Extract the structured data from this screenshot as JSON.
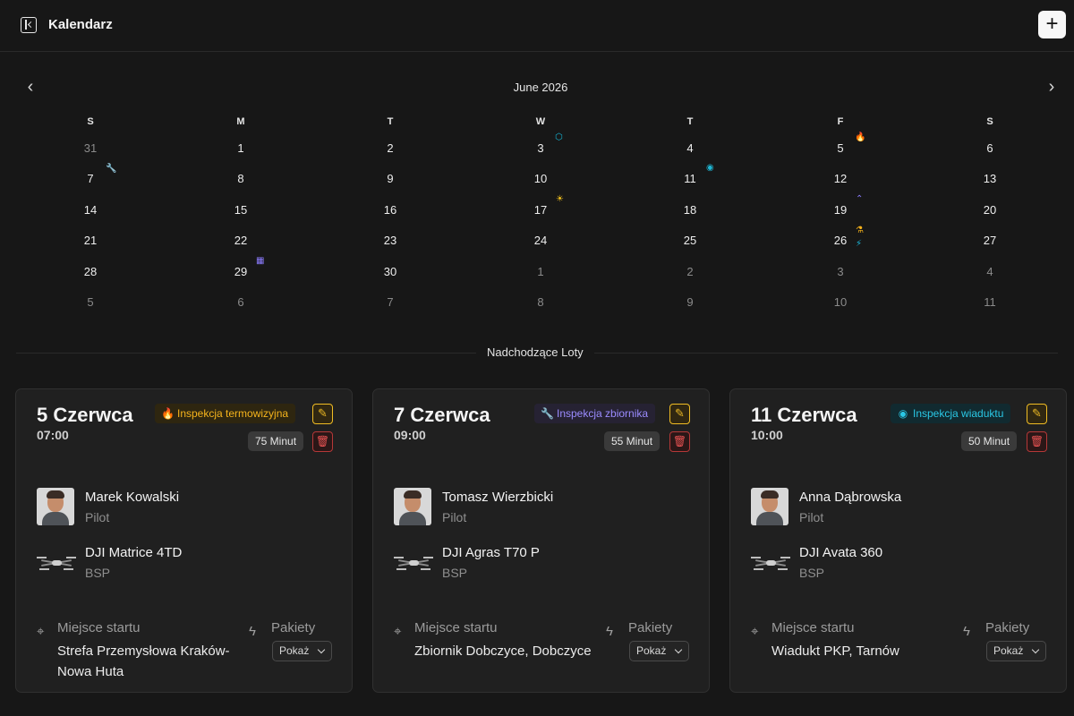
{
  "app": {
    "title": "Kalendarz",
    "add_button": "+"
  },
  "calendar": {
    "month_label": "June 2026",
    "prev_icon": "‹",
    "next_icon": "›",
    "weekdays": [
      "S",
      "M",
      "T",
      "W",
      "T",
      "F",
      "S"
    ],
    "weeks": [
      [
        "31",
        "1",
        "2",
        "3",
        "4",
        "5",
        "6"
      ],
      [
        "7",
        "8",
        "9",
        "10",
        "11",
        "12",
        "13"
      ],
      [
        "14",
        "15",
        "16",
        "17",
        "18",
        "19",
        "20"
      ],
      [
        "21",
        "22",
        "23",
        "24",
        "25",
        "26",
        "27"
      ],
      [
        "28",
        "29",
        "30",
        "1",
        "2",
        "3",
        "4"
      ],
      [
        "5",
        "6",
        "7",
        "8",
        "9",
        "10",
        "11"
      ]
    ],
    "event_icons": [
      {
        "day": "3",
        "name": "cube-icon",
        "glyph": "⬡",
        "color": "#16b8d9"
      },
      {
        "day": "5",
        "name": "flame-icon",
        "glyph": "🔥",
        "color": "#f6b21a"
      },
      {
        "day": "7",
        "name": "wrench-icon",
        "glyph": "🔧",
        "color": "#8c7cff"
      },
      {
        "day": "11",
        "name": "camera-icon",
        "glyph": "◉",
        "color": "#1eb6d3"
      },
      {
        "day": "17",
        "name": "sun-icon",
        "glyph": "☀",
        "color": "#f4c21d"
      },
      {
        "day": "19",
        "name": "chevrons-up-icon",
        "glyph": "⌃",
        "color": "#8c7cff"
      },
      {
        "day": "26",
        "name": "flask-icon",
        "glyph": "⚗",
        "color": "#f6b21a"
      },
      {
        "day": "26",
        "name": "bolt-icon",
        "glyph": "⚡",
        "color": "#19b7da"
      },
      {
        "day": "29",
        "name": "building-icon",
        "glyph": "▦",
        "color": "#8c7cff"
      }
    ]
  },
  "upcoming": {
    "title": "Nadchodzące Loty",
    "cards": [
      {
        "date": "5 Czerwca",
        "time": "07:00",
        "tag": {
          "label": "Inspekcja termowizyjna",
          "icon": "flame-icon",
          "glyph": "🔥",
          "color": "#f5b31c",
          "bg": "#2e2610"
        },
        "duration": "75 Minut",
        "person": {
          "name": "Marek Kowalski",
          "role": "Pilot"
        },
        "device": {
          "name": "DJI Matrice 4TD",
          "type": "BSP"
        },
        "location_label": "Miejsce startu",
        "location": "Strefa Przemysłowa Kraków-Nowa Huta",
        "packages_label": "Pakiety",
        "packages_button": "Pokaż"
      },
      {
        "date": "7 Czerwca",
        "time": "09:00",
        "tag": {
          "label": "Inspekcja zbiornika",
          "icon": "wrench-icon",
          "glyph": "🔧",
          "color": "#9b8cff",
          "bg": "#262233"
        },
        "duration": "55 Minut",
        "person": {
          "name": "Tomasz Wierzbicki",
          "role": "Pilot"
        },
        "device": {
          "name": "DJI Agras T70 P",
          "type": "BSP"
        },
        "location_label": "Miejsce startu",
        "location": "Zbiornik Dobczyce, Dobczyce",
        "packages_label": "Pakiety",
        "packages_button": "Pokaż"
      },
      {
        "date": "11 Czerwca",
        "time": "10:00",
        "tag": {
          "label": "Inspekcja wiaduktu",
          "icon": "camera-icon",
          "glyph": "◉",
          "color": "#2ac7e5",
          "bg": "#112a30"
        },
        "duration": "50 Minut",
        "person": {
          "name": "Anna Dąbrowska",
          "role": "Pilot"
        },
        "device": {
          "name": "DJI Avata 360",
          "type": "BSP"
        },
        "location_label": "Miejsce startu",
        "location": "Wiadukt PKP, Tarnów",
        "packages_label": "Pakiety",
        "packages_button": "Pokaż"
      }
    ]
  }
}
